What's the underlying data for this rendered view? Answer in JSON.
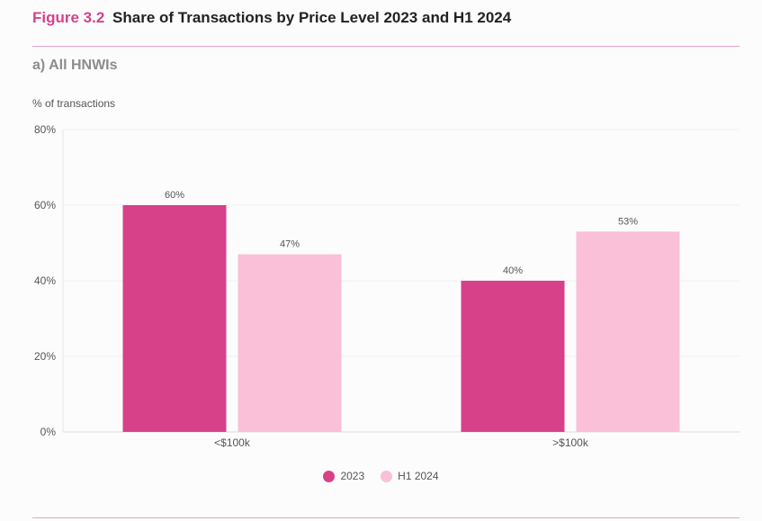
{
  "header": {
    "figure_label": "Figure 3.2",
    "title": "Share of Transactions by Price Level 2023 and H1 2024"
  },
  "subtitle": "a) All HNWIs",
  "chart_data": {
    "type": "bar",
    "ylabel": "% of transactions",
    "xlabel": "",
    "categories": [
      "<$100k",
      ">$100k"
    ],
    "series": [
      {
        "name": "2023",
        "values": [
          60,
          40
        ],
        "labels": [
          "60%",
          "40%"
        ],
        "color": "#d6418a"
      },
      {
        "name": "H1 2024",
        "values": [
          47,
          53
        ],
        "labels": [
          "47%",
          "53%"
        ],
        "color": "#f9c0d8"
      }
    ],
    "ylim": [
      0,
      80
    ],
    "yticks": [
      {
        "value": 0,
        "label": "0%"
      },
      {
        "value": 20,
        "label": "20%"
      },
      {
        "value": 40,
        "label": "40%"
      },
      {
        "value": 60,
        "label": "60%"
      },
      {
        "value": 80,
        "label": "80%"
      }
    ],
    "grid": true,
    "legend_position": "bottom-center"
  }
}
